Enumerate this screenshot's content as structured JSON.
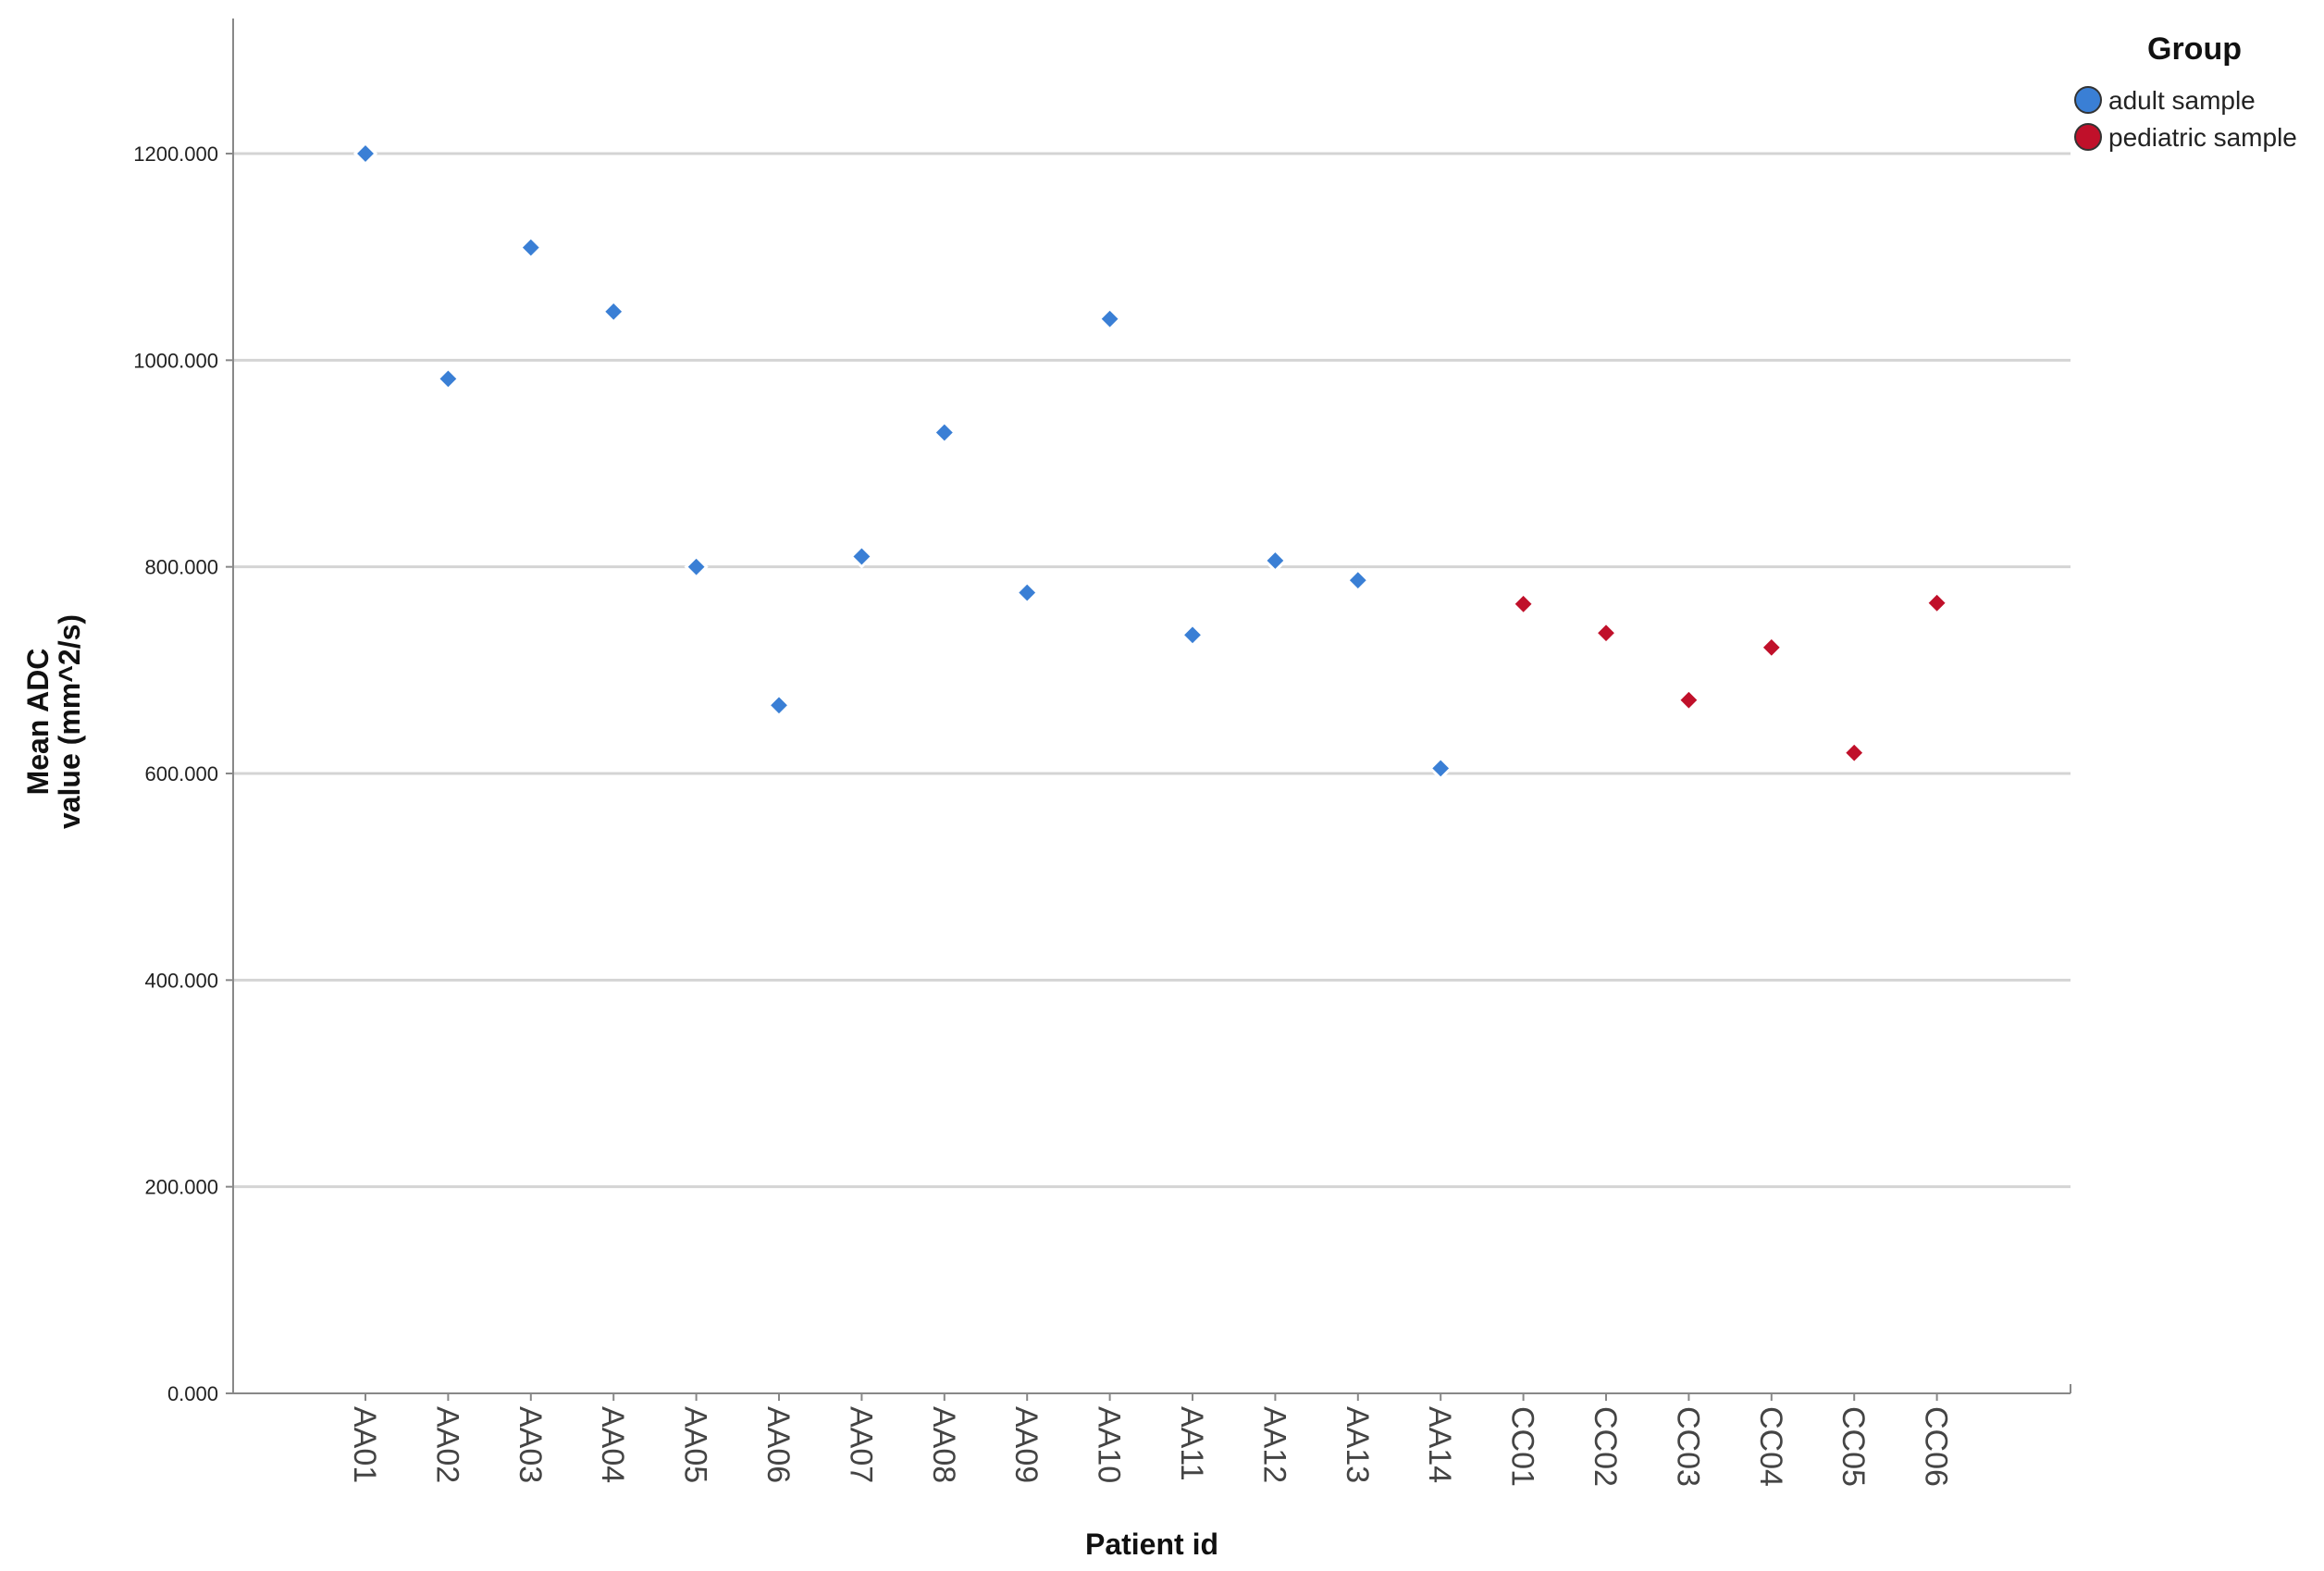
{
  "chart_data": {
    "type": "scatter",
    "title": "",
    "xlabel": "Patient id",
    "ylabel_line1": "Mean ADC",
    "ylabel_line2": "value (mm^2/s)",
    "ylim": [
      0,
      1200
    ],
    "yticks": [
      0,
      200,
      400,
      600,
      800,
      1000,
      1200
    ],
    "ytick_labels": [
      "0.000",
      "200.000",
      "400.000",
      "600.000",
      "800.000",
      "1000.000",
      "1200.000"
    ],
    "grid": true,
    "legend": {
      "title": "Group",
      "position": "top-right"
    },
    "categories": [
      "AA01",
      "AA02",
      "AA03",
      "AA04",
      "AA05",
      "AA06",
      "AA07",
      "AA08",
      "AA09",
      "AA10",
      "AA11",
      "AA12",
      "AA13",
      "AA14",
      "CC01",
      "CC02",
      "CC03",
      "CC04",
      "CC05",
      "CC06"
    ],
    "series": [
      {
        "name": "adult sample",
        "color": "#3a7fd5",
        "points": [
          {
            "x": "AA01",
            "y": 1200
          },
          {
            "x": "AA02",
            "y": 982
          },
          {
            "x": "AA03",
            "y": 1109
          },
          {
            "x": "AA04",
            "y": 1047
          },
          {
            "x": "AA05",
            "y": 800
          },
          {
            "x": "AA06",
            "y": 666
          },
          {
            "x": "AA07",
            "y": 810
          },
          {
            "x": "AA08",
            "y": 930
          },
          {
            "x": "AA09",
            "y": 775
          },
          {
            "x": "AA10",
            "y": 1040
          },
          {
            "x": "AA11",
            "y": 734
          },
          {
            "x": "AA12",
            "y": 806
          },
          {
            "x": "AA13",
            "y": 787
          },
          {
            "x": "AA14",
            "y": 605
          }
        ]
      },
      {
        "name": "pediatric sample",
        "color": "#c0102a",
        "points": [
          {
            "x": "CC01",
            "y": 764
          },
          {
            "x": "CC02",
            "y": 736
          },
          {
            "x": "CC03",
            "y": 671
          },
          {
            "x": "CC04",
            "y": 722
          },
          {
            "x": "CC05",
            "y": 620
          },
          {
            "x": "CC06",
            "y": 765
          }
        ]
      }
    ]
  }
}
